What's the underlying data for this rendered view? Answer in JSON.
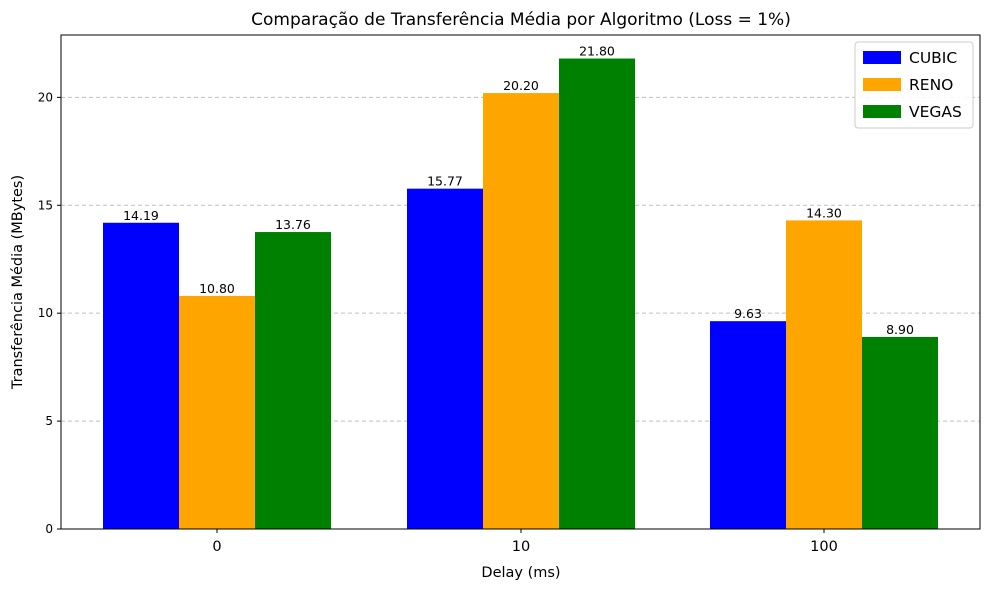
{
  "chart_data": {
    "type": "bar",
    "title": "Comparação de Transferência Média por Algoritmo (Loss = 1%)",
    "xlabel": "Delay (ms)",
    "ylabel": "Transferência Média (MBytes)",
    "categories": [
      "0",
      "10",
      "100"
    ],
    "series": [
      {
        "name": "CUBIC",
        "color": "#0000ff",
        "values": [
          14.19,
          15.77,
          9.63
        ]
      },
      {
        "name": "RENO",
        "color": "#ffa500",
        "values": [
          10.8,
          20.2,
          14.3
        ]
      },
      {
        "name": "VEGAS",
        "color": "#008000",
        "values": [
          13.76,
          21.8,
          8.9
        ]
      }
    ],
    "data_labels": [
      [
        "14.19",
        "15.77",
        "9.63"
      ],
      [
        "10.80",
        "20.20",
        "14.30"
      ],
      [
        "13.76",
        "21.80",
        "8.90"
      ]
    ],
    "ylim": [
      0,
      22.89
    ],
    "yticks": [
      0,
      5,
      10,
      15,
      20
    ],
    "ytick_labels": [
      "0",
      "5",
      "10",
      "15",
      "20"
    ],
    "grid": "y-dashed",
    "legend": "top-right"
  }
}
